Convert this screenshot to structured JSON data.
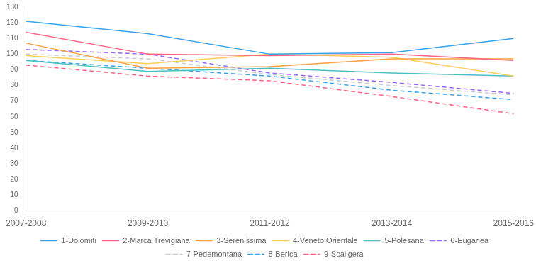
{
  "chart_data": {
    "type": "line",
    "categories": [
      "2007-2008",
      "2009-2010",
      "2011-2012",
      "2013-2014",
      "2015-2016"
    ],
    "series": [
      {
        "name": "1-Dolomiti",
        "values": [
          121,
          113,
          100,
          101,
          110
        ],
        "line_style": "solid"
      },
      {
        "name": "2-Marca Trevigiana",
        "values": [
          114,
          100,
          99,
          100,
          96
        ],
        "line_style": "solid"
      },
      {
        "name": "3-Serenissima",
        "values": [
          107,
          91,
          92,
          97,
          97
        ],
        "line_style": "solid"
      },
      {
        "name": "4-Veneto Orientale",
        "values": [
          99,
          94,
          100,
          98,
          86
        ],
        "line_style": "solid"
      },
      {
        "name": "5-Polesana",
        "values": [
          96,
          89,
          91,
          88,
          86
        ],
        "line_style": "solid"
      },
      {
        "name": "6-Euganea",
        "values": [
          103,
          100,
          88,
          82,
          75
        ],
        "line_style": "dashed"
      },
      {
        "name": "7-Pedemontana",
        "values": [
          100,
          97,
          87,
          80,
          74
        ],
        "line_style": "dashed"
      },
      {
        "name": "8-Berica",
        "values": [
          96,
          91,
          86,
          77,
          71
        ],
        "line_style": "dashed"
      },
      {
        "name": "9-Scaligera",
        "values": [
          93,
          86,
          83,
          73,
          62
        ],
        "line_style": "dashed"
      }
    ],
    "ylim": [
      0,
      130
    ],
    "yticks": [
      0,
      10,
      20,
      30,
      40,
      50,
      60,
      70,
      80,
      90,
      100,
      110,
      120,
      130
    ],
    "grid": false,
    "legend": "bottom"
  }
}
